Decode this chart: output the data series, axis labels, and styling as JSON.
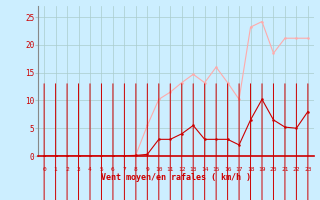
{
  "x": [
    0,
    1,
    2,
    3,
    4,
    5,
    6,
    7,
    8,
    9,
    10,
    11,
    12,
    13,
    14,
    15,
    16,
    17,
    18,
    19,
    20,
    21,
    22,
    23
  ],
  "rafales": [
    0,
    0,
    0,
    0,
    0,
    0,
    0,
    0,
    0.2,
    5.5,
    10.2,
    11.5,
    13.2,
    14.7,
    13.2,
    16.0,
    13.2,
    10.2,
    23.2,
    24.2,
    18.5,
    21.2,
    21.2,
    21.2
  ],
  "moyen": [
    0,
    0,
    0,
    0,
    0,
    0,
    0,
    0,
    0.1,
    0.3,
    3.0,
    3.0,
    4.0,
    5.5,
    3.0,
    3.0,
    3.0,
    2.0,
    6.5,
    10.2,
    6.5,
    5.2,
    5.0,
    8.0
  ],
  "bg_color": "#cceeff",
  "grid_color": "#aacccc",
  "rafales_color": "#ffaaaa",
  "moyen_color": "#cc0000",
  "xlabel": "Vent moyen/en rafales ( km/h )",
  "ylabel_ticks": [
    0,
    5,
    10,
    15,
    20,
    25
  ],
  "ylim": [
    0,
    27
  ],
  "xlim": [
    -0.5,
    23.5
  ],
  "tick_color": "#cc0000",
  "label_color": "#cc0000",
  "xtick_labels": [
    "0",
    "1",
    "2",
    "3",
    "4",
    "5",
    "6",
    "7",
    "8",
    "9",
    "10",
    "11",
    "12",
    "13",
    "14",
    "15",
    "16",
    "17",
    "18",
    "19",
    "20",
    "21",
    "22",
    "23"
  ]
}
